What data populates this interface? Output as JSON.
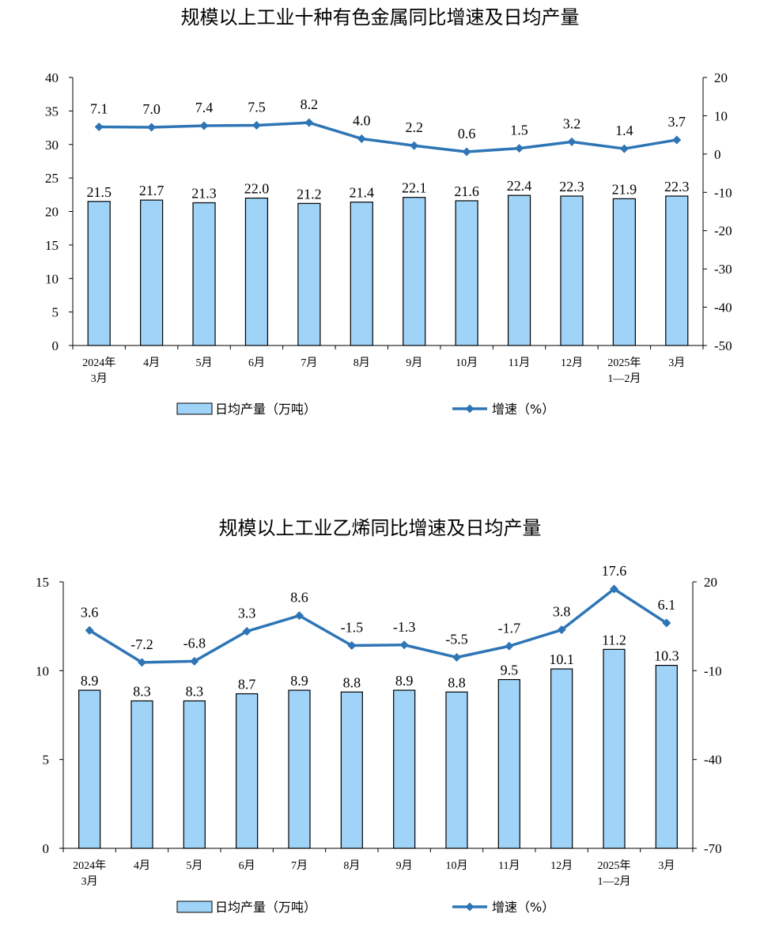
{
  "chart_data": [
    {
      "type": "bar",
      "title": "规模以上工业十种有色金属同比增速及日均产量",
      "categories": [
        [
          "2024年",
          "3月"
        ],
        [
          "4月"
        ],
        [
          "5月"
        ],
        [
          "6月"
        ],
        [
          "7月"
        ],
        [
          "8月"
        ],
        [
          "9月"
        ],
        [
          "10月"
        ],
        [
          "11月"
        ],
        [
          "12月"
        ],
        [
          "2025年",
          "1—2月"
        ],
        [
          "3月"
        ]
      ],
      "y_left_ticks": [
        "0",
        "5",
        "10",
        "15",
        "20",
        "25",
        "30",
        "35",
        "40"
      ],
      "y_right_ticks": [
        "20",
        "10",
        "0",
        "-10",
        "-20",
        "-30",
        "-40",
        "-50"
      ],
      "ylim_left": [
        0,
        40
      ],
      "ylim_right": [
        -50,
        20
      ],
      "series": [
        {
          "name": "日均产量（万吨）",
          "type": "bar",
          "axis": "left",
          "color": "#9fd3f8",
          "values": [
            21.5,
            21.7,
            21.3,
            22.0,
            21.2,
            21.4,
            22.1,
            21.6,
            22.4,
            22.3,
            21.9,
            22.3
          ],
          "labels": [
            "21.5",
            "21.7",
            "21.3",
            "22.0",
            "21.2",
            "21.4",
            "22.1",
            "21.6",
            "22.4",
            "22.3",
            "21.9",
            "22.3"
          ]
        },
        {
          "name": "增速（%）",
          "type": "line",
          "axis": "right",
          "color": "#2e75b6",
          "values": [
            7.1,
            7.0,
            7.4,
            7.5,
            8.2,
            4.0,
            2.2,
            0.6,
            1.5,
            3.2,
            1.4,
            3.7
          ],
          "labels": [
            "7.1",
            "7.0",
            "7.4",
            "7.5",
            "8.2",
            "4.0",
            "2.2",
            "0.6",
            "1.5",
            "3.2",
            "1.4",
            "3.7"
          ]
        }
      ],
      "legend_placement": "bottom",
      "grid": false
    },
    {
      "type": "bar",
      "title": "规模以上工业乙烯同比增速及日均产量",
      "categories": [
        [
          "2024年",
          "3月"
        ],
        [
          "4月"
        ],
        [
          "5月"
        ],
        [
          "6月"
        ],
        [
          "7月"
        ],
        [
          "8月"
        ],
        [
          "9月"
        ],
        [
          "10月"
        ],
        [
          "11月"
        ],
        [
          "12月"
        ],
        [
          "2025年",
          "1—2月"
        ],
        [
          "3月"
        ]
      ],
      "y_left_ticks": [
        "0",
        "5",
        "10",
        "15"
      ],
      "y_right_ticks": [
        "20",
        "-10",
        "-40",
        "-70"
      ],
      "ylim_left": [
        0,
        15
      ],
      "ylim_right": [
        -70,
        20
      ],
      "series": [
        {
          "name": "日均产量（万吨）",
          "type": "bar",
          "axis": "left",
          "color": "#9fd3f8",
          "values": [
            8.9,
            8.3,
            8.3,
            8.7,
            8.9,
            8.8,
            8.9,
            8.8,
            9.5,
            10.1,
            11.2,
            10.3
          ],
          "labels": [
            "8.9",
            "8.3",
            "8.3",
            "8.7",
            "8.9",
            "8.8",
            "8.9",
            "8.8",
            "9.5",
            "10.1",
            "11.2",
            "10.3"
          ]
        },
        {
          "name": "增速（%）",
          "type": "line",
          "axis": "right",
          "color": "#2e75b6",
          "values": [
            3.6,
            -7.2,
            -6.8,
            3.3,
            8.6,
            -1.5,
            -1.3,
            -5.5,
            -1.7,
            3.8,
            17.6,
            6.1
          ],
          "labels": [
            "3.6",
            "-7.2",
            "-6.8",
            "3.3",
            "8.6",
            "-1.5",
            "-1.3",
            "-5.5",
            "-1.7",
            "3.8",
            "17.6",
            "6.1"
          ]
        }
      ],
      "legend_placement": "bottom",
      "grid": false
    }
  ]
}
